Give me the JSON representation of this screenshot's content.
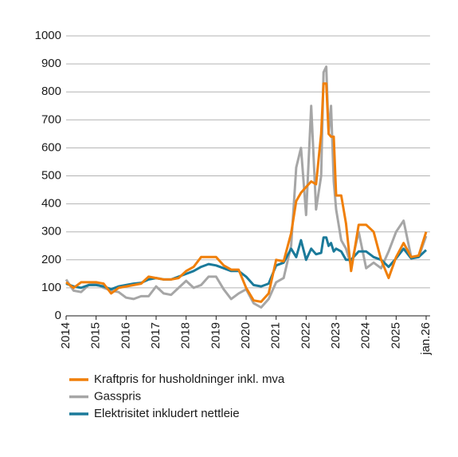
{
  "chart_data": {
    "type": "line",
    "x": [
      2014,
      2014.25,
      2014.5,
      2014.75,
      2015,
      2015.25,
      2015.5,
      2015.75,
      2016,
      2016.25,
      2016.5,
      2016.75,
      2017,
      2017.25,
      2017.5,
      2017.75,
      2018,
      2018.25,
      2018.5,
      2018.75,
      2019,
      2019.25,
      2019.5,
      2019.75,
      2020,
      2020.25,
      2020.5,
      2020.75,
      2021,
      2021.25,
      2021.5,
      2021.67,
      2021.83,
      2022,
      2022.17,
      2022.33,
      2022.5,
      2022.58,
      2022.67,
      2022.75,
      2022.83,
      2022.92,
      2023,
      2023.17,
      2023.33,
      2023.5,
      2023.75,
      2024,
      2024.25,
      2024.5,
      2024.75,
      2025,
      2025.25,
      2025.5,
      2025.75,
      2026
    ],
    "series": [
      {
        "name": "Kraftpris for husholdninger inkl. mva",
        "color": "#f07f09",
        "values": [
          120,
          100,
          120,
          120,
          120,
          115,
          80,
          100,
          105,
          110,
          115,
          140,
          135,
          130,
          130,
          135,
          160,
          175,
          210,
          210,
          210,
          180,
          165,
          165,
          100,
          55,
          50,
          80,
          200,
          195,
          295,
          410,
          440,
          460,
          480,
          470,
          650,
          830,
          830,
          650,
          640,
          640,
          430,
          430,
          330,
          160,
          325,
          325,
          300,
          200,
          135,
          210,
          260,
          210,
          215,
          300
        ]
      },
      {
        "name": "Gasspris",
        "color": "#a6a6a6",
        "values": [
          130,
          90,
          85,
          110,
          115,
          100,
          90,
          85,
          65,
          60,
          70,
          70,
          105,
          80,
          75,
          100,
          125,
          100,
          110,
          140,
          140,
          95,
          60,
          80,
          95,
          45,
          30,
          60,
          120,
          135,
          250,
          530,
          600,
          360,
          750,
          380,
          500,
          870,
          890,
          650,
          750,
          480,
          380,
          270,
          240,
          180,
          300,
          170,
          190,
          170,
          230,
          300,
          340,
          210,
          210,
          285
        ]
      },
      {
        "name": "Elektrisitet inkludert nettleie",
        "color": "#1b7a9a",
        "values": [
          115,
          105,
          100,
          110,
          110,
          105,
          95,
          105,
          110,
          115,
          118,
          130,
          135,
          130,
          130,
          140,
          150,
          160,
          175,
          185,
          180,
          170,
          160,
          160,
          140,
          110,
          105,
          115,
          180,
          190,
          240,
          210,
          270,
          200,
          240,
          220,
          225,
          280,
          280,
          250,
          260,
          230,
          240,
          230,
          200,
          200,
          230,
          230,
          210,
          200,
          175,
          205,
          240,
          205,
          210,
          235
        ]
      }
    ],
    "xlim": [
      2014,
      2026.13
    ],
    "xticks": [
      2014,
      2015,
      2016,
      2017,
      2018,
      2019,
      2020,
      2021,
      2022,
      2023,
      2024,
      2025,
      {
        "value": 2026,
        "label": "jan.26"
      }
    ],
    "ylim": [
      0,
      1000
    ],
    "yticks": [
      0,
      100,
      200,
      300,
      400,
      500,
      600,
      700,
      800,
      900,
      1000
    ],
    "grid": true
  }
}
